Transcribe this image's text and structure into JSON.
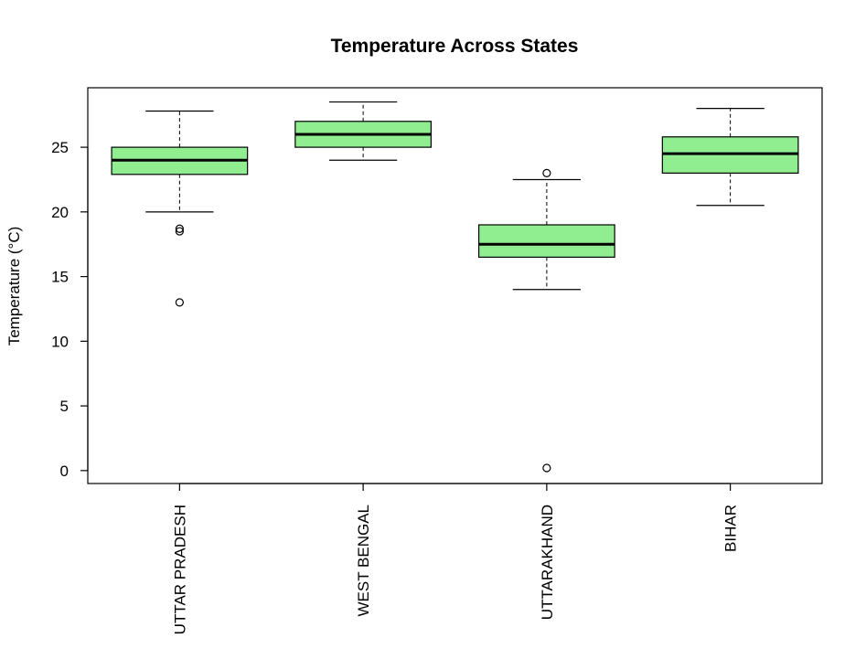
{
  "chart_data": {
    "type": "boxplot",
    "title": "Temperature Across States",
    "xlabel": "",
    "ylabel": "Temperature (°C)",
    "ylim": [
      -1,
      29.6
    ],
    "yticks": [
      0,
      5,
      10,
      15,
      20,
      25
    ],
    "box_color": "#90EE90",
    "categories": [
      "UTTAR PRADESH",
      "WEST BENGAL",
      "UTTARAKHAND",
      "BIHAR"
    ],
    "boxes": [
      {
        "category": "UTTAR PRADESH",
        "whisker_low": 20,
        "q1": 22.9,
        "median": 24,
        "q3": 25,
        "whisker_high": 27.8,
        "outliers": [
          18.5,
          18.7,
          13
        ]
      },
      {
        "category": "WEST BENGAL",
        "whisker_low": 24,
        "q1": 25,
        "median": 26,
        "q3": 27,
        "whisker_high": 28.5,
        "outliers": []
      },
      {
        "category": "UTTARAKHAND",
        "whisker_low": 14,
        "q1": 16.5,
        "median": 17.5,
        "q3": 19,
        "whisker_high": 22.5,
        "outliers": [
          23,
          0.2
        ]
      },
      {
        "category": "BIHAR",
        "whisker_low": 20.5,
        "q1": 23,
        "median": 24.5,
        "q3": 25.8,
        "whisker_high": 28,
        "outliers": []
      }
    ]
  }
}
